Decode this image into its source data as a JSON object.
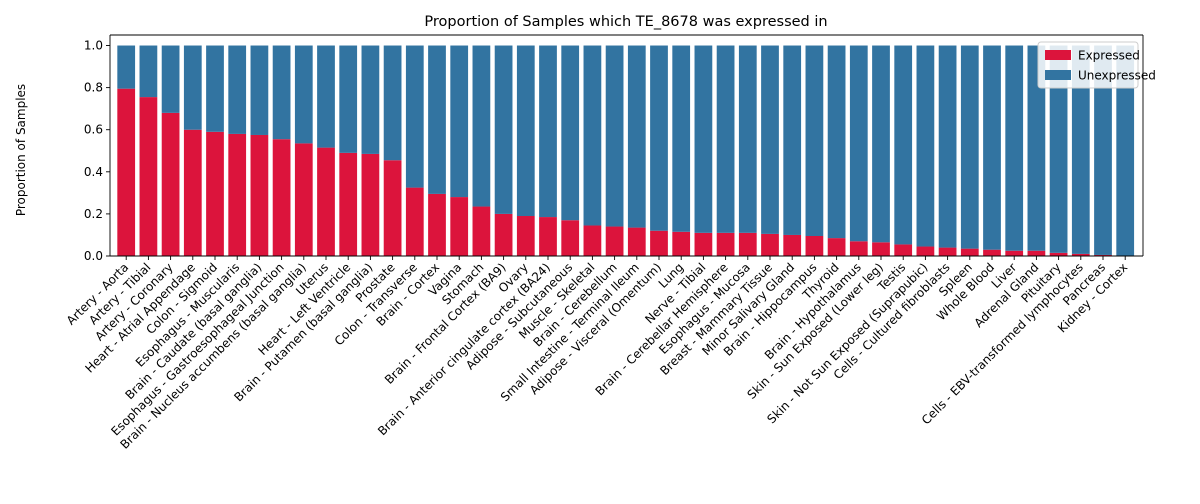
{
  "chart_data": {
    "type": "bar",
    "stacked": true,
    "title": "Proportion of Samples which TE_8678 was expressed in",
    "xlabel": "",
    "ylabel": "Proportion of Samples",
    "ylim": [
      0,
      1.05
    ],
    "yticks": [
      "0.0",
      "0.2",
      "0.4",
      "0.6",
      "0.8",
      "1.0"
    ],
    "ytick_values": [
      0,
      0.2,
      0.4,
      0.6,
      0.8,
      1.0
    ],
    "legend_position": "top-right",
    "grid": false,
    "categories": [
      "Artery - Aorta",
      "Artery - Tibial",
      "Artery - Coronary",
      "Heart - Atrial Appendage",
      "Colon - Sigmoid",
      "Esophagus - Muscularis",
      "Brain - Caudate (basal ganglia)",
      "Esophagus - Gastroesophageal Junction",
      "Brain - Nucleus accumbens (basal ganglia)",
      "Uterus",
      "Heart - Left Ventricle",
      "Brain - Putamen (basal ganglia)",
      "Prostate",
      "Colon - Transverse",
      "Brain - Cortex",
      "Vagina",
      "Stomach",
      "Brain - Frontal Cortex (BA9)",
      "Ovary",
      "Brain - Anterior cingulate cortex (BA24)",
      "Adipose - Subcutaneous",
      "Muscle - Skeletal",
      "Brain - Cerebellum",
      "Small Intestine - Terminal Ileum",
      "Adipose - Visceral (Omentum)",
      "Lung",
      "Nerve - Tibial",
      "Brain - Cerebellar Hemisphere",
      "Esophagus - Mucosa",
      "Breast - Mammary Tissue",
      "Minor Salivary Gland",
      "Brain - Hippocampus",
      "Thyroid",
      "Brain - Hypothalamus",
      "Skin - Sun Exposed (Lower leg)",
      "Testis",
      "Skin - Not Sun Exposed (Suprapubic)",
      "Cells - Cultured fibroblasts",
      "Spleen",
      "Whole Blood",
      "Liver",
      "Adrenal Gland",
      "Pituitary",
      "Cells - EBV-transformed lymphocytes",
      "Pancreas",
      "Kidney - Cortex"
    ],
    "series": [
      {
        "name": "Expressed",
        "color": "#dc143c",
        "values": [
          0.795,
          0.755,
          0.68,
          0.6,
          0.59,
          0.58,
          0.575,
          0.555,
          0.535,
          0.515,
          0.49,
          0.485,
          0.455,
          0.325,
          0.295,
          0.28,
          0.235,
          0.2,
          0.19,
          0.185,
          0.17,
          0.145,
          0.14,
          0.135,
          0.12,
          0.115,
          0.11,
          0.11,
          0.11,
          0.105,
          0.1,
          0.095,
          0.085,
          0.07,
          0.065,
          0.055,
          0.045,
          0.04,
          0.035,
          0.03,
          0.025,
          0.025,
          0.015,
          0.01,
          0.005,
          0.0
        ]
      },
      {
        "name": "Unexpressed",
        "color": "#3274a1",
        "values": [
          0.205,
          0.245,
          0.32,
          0.4,
          0.41,
          0.42,
          0.425,
          0.445,
          0.465,
          0.485,
          0.51,
          0.515,
          0.545,
          0.675,
          0.705,
          0.72,
          0.765,
          0.8,
          0.81,
          0.815,
          0.83,
          0.855,
          0.86,
          0.865,
          0.88,
          0.885,
          0.89,
          0.89,
          0.89,
          0.895,
          0.9,
          0.905,
          0.915,
          0.93,
          0.935,
          0.945,
          0.955,
          0.96,
          0.965,
          0.97,
          0.975,
          0.975,
          0.985,
          0.99,
          0.995,
          1.0
        ]
      }
    ]
  }
}
